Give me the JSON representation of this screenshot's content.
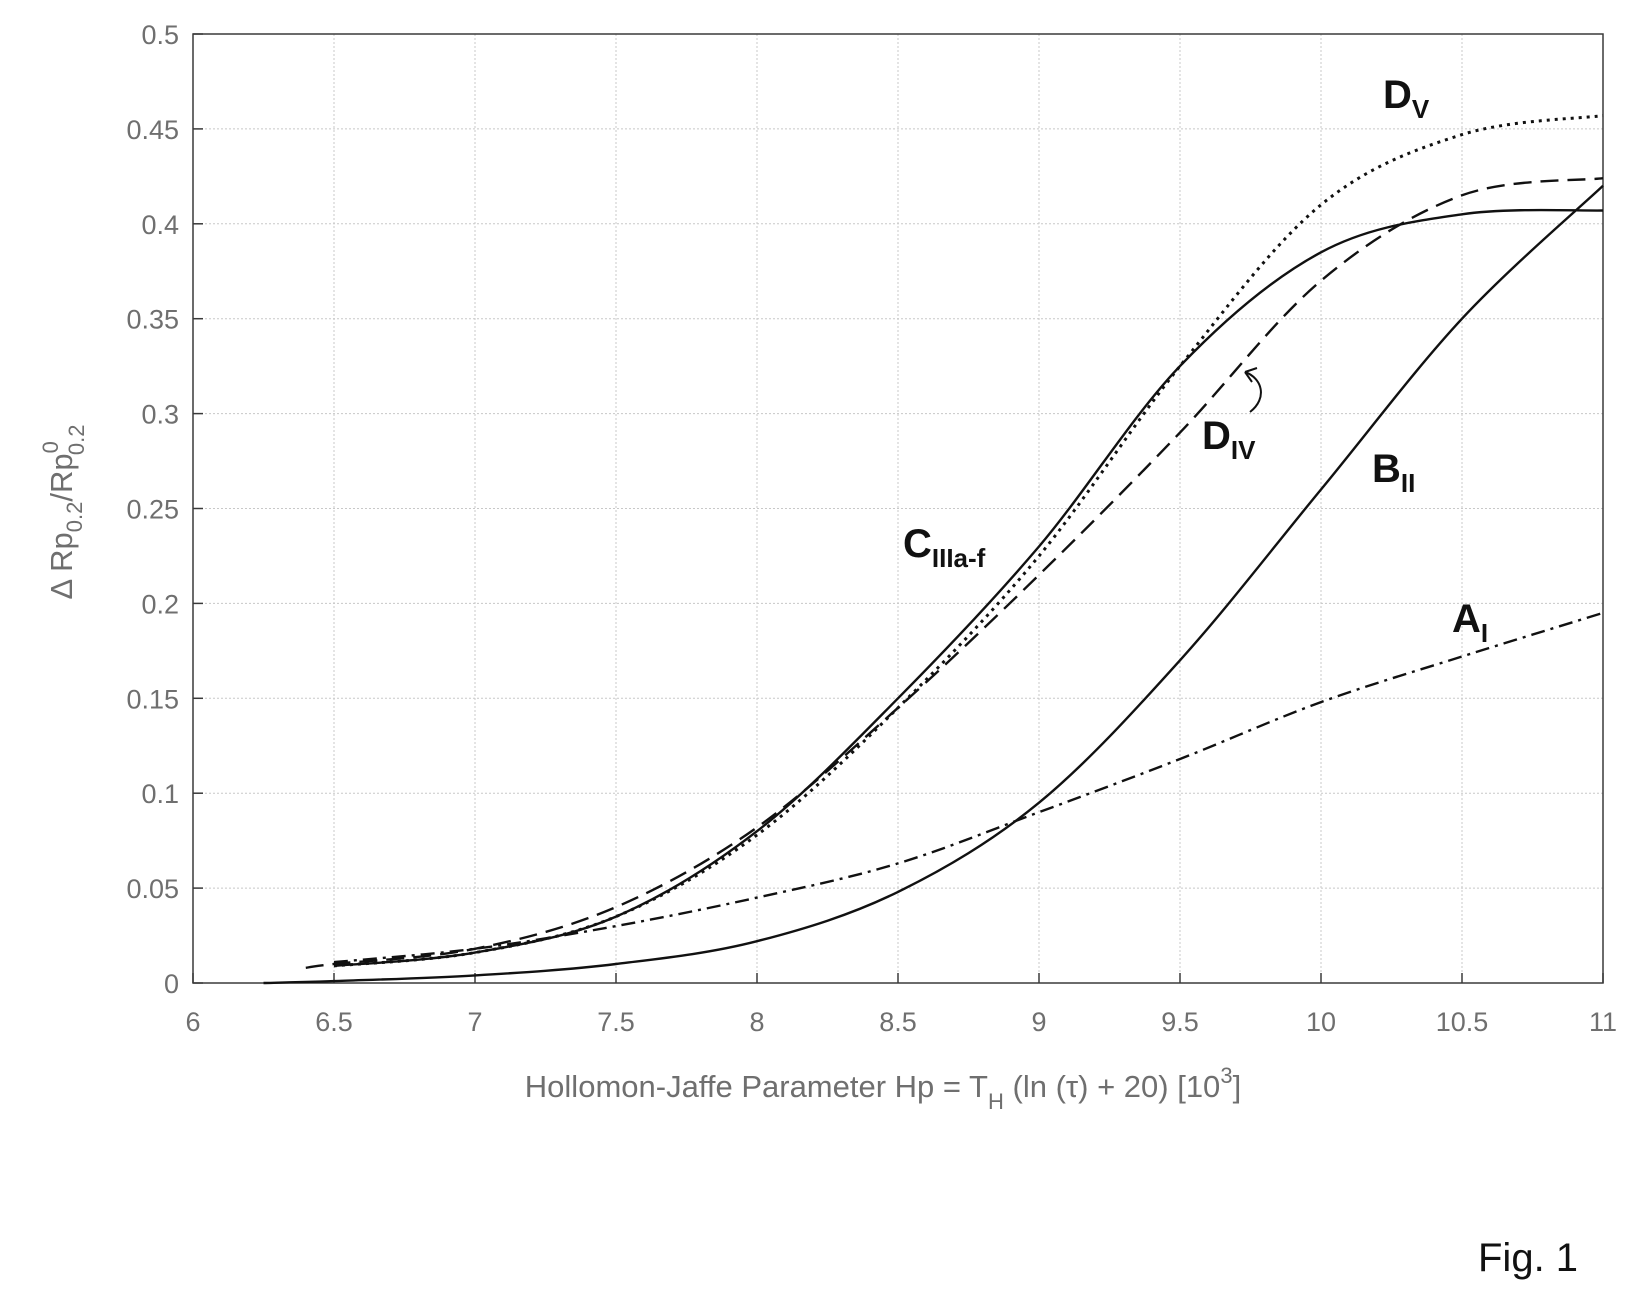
{
  "chart_data": {
    "type": "line",
    "xlabel": {
      "main": "Hollomon-Jaffe Parameter  Hp = T",
      "sub": "H",
      "rest": " (ln (τ) + 20)  [10",
      "sup": "3",
      "end": "]"
    },
    "ylabel": {
      "delta": "Δ Rp",
      "sub1": "0.2",
      "mid": "/Rp",
      "sup2": "0",
      "sub2": "0.2"
    },
    "xlim": [
      6,
      11
    ],
    "ylim": [
      0,
      0.5
    ],
    "xticks": [
      "6",
      "6.5",
      "7",
      "7.5",
      "8",
      "8.5",
      "9",
      "9.5",
      "10",
      "10.5",
      "11"
    ],
    "yticks": [
      "0",
      "0.05",
      "0.1",
      "0.15",
      "0.2",
      "0.25",
      "0.3",
      "0.35",
      "0.4",
      "0.45",
      "0.5"
    ],
    "grid": true,
    "series": [
      {
        "label_main": "A",
        "label_sub": "I",
        "style": "dashdot",
        "x": [
          6.5,
          7.0,
          7.5,
          8.0,
          8.5,
          9.0,
          9.5,
          10.0,
          10.5,
          11.0
        ],
        "y": [
          0.011,
          0.018,
          0.03,
          0.045,
          0.063,
          0.09,
          0.118,
          0.148,
          0.172,
          0.195
        ]
      },
      {
        "label_main": "B",
        "label_sub": "II",
        "style": "solid",
        "x": [
          6.25,
          6.5,
          7.0,
          7.5,
          8.0,
          8.5,
          9.0,
          9.5,
          10.0,
          10.5,
          11.0
        ],
        "y": [
          0.0,
          0.001,
          0.004,
          0.01,
          0.022,
          0.048,
          0.095,
          0.17,
          0.26,
          0.35,
          0.42
        ]
      },
      {
        "label_main": "C",
        "label_sub": "IIIa-f",
        "style": "solid",
        "x": [
          6.5,
          7.0,
          7.5,
          8.0,
          8.5,
          9.0,
          9.5,
          10.0,
          10.5,
          11.0
        ],
        "y": [
          0.009,
          0.016,
          0.035,
          0.08,
          0.15,
          0.23,
          0.325,
          0.385,
          0.405,
          0.407
        ]
      },
      {
        "label_main": "D",
        "label_sub": "IV",
        "style": "dashed",
        "x": [
          6.4,
          6.5,
          7.0,
          7.5,
          8.0,
          8.5,
          9.0,
          9.5,
          10.0,
          10.5,
          11.0
        ],
        "y": [
          0.008,
          0.01,
          0.018,
          0.04,
          0.082,
          0.145,
          0.215,
          0.29,
          0.37,
          0.415,
          0.424
        ]
      },
      {
        "label_main": "D",
        "label_sub": "V",
        "style": "dotted",
        "x": [
          6.5,
          7.0,
          7.5,
          8.0,
          8.5,
          9.0,
          9.5,
          10.0,
          10.5,
          11.0
        ],
        "y": [
          0.009,
          0.016,
          0.035,
          0.078,
          0.145,
          0.225,
          0.325,
          0.41,
          0.447,
          0.457
        ]
      }
    ]
  },
  "caption": "Fig. 1"
}
